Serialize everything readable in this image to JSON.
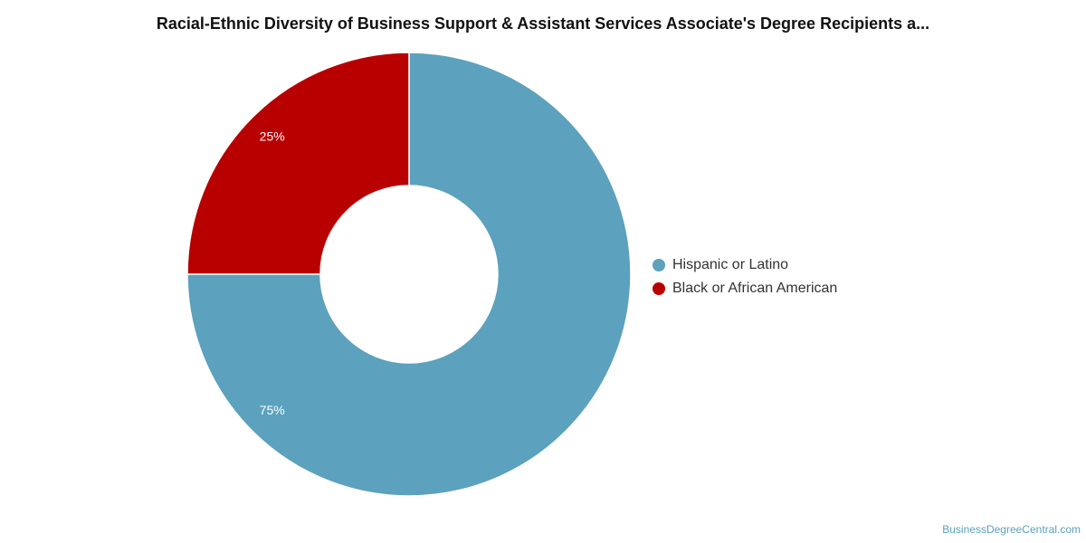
{
  "title": "Racial-Ethnic Diversity of Business Support & Assistant Services Associate's Degree Recipients a...",
  "watermark": "BusinessDegreeCentral.com",
  "chart_data": {
    "type": "pie",
    "variant": "donut",
    "title": "Racial-Ethnic Diversity of Business Support & Assistant Services Associate's Degree Recipients a...",
    "categories": [
      "Hispanic or Latino",
      "Black or African American"
    ],
    "values": [
      75,
      25
    ],
    "labels": [
      "75%",
      "25%"
    ],
    "colors": [
      "#5ca1bd",
      "#b90000"
    ],
    "legend_position": "right"
  },
  "legend": {
    "items": [
      {
        "label": "Hispanic or Latino",
        "color": "#5ca1bd"
      },
      {
        "label": "Black or African American",
        "color": "#b90000"
      }
    ]
  }
}
